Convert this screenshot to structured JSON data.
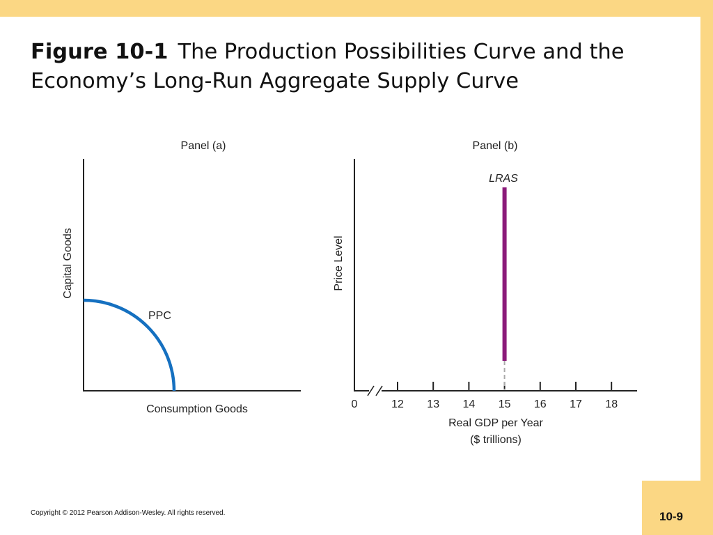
{
  "slide": {
    "figure_label": "Figure 10-1",
    "title": "The Production Possibilities Curve and the Economy’s Long-Run Aggregate Supply Curve",
    "number": "10-9",
    "copyright": "Copyright © 2012 Pearson Addison-Wesley. All rights reserved."
  },
  "colors": {
    "background_frame": "#fbd784",
    "ppc_curve": "#1570c0",
    "lras_line": "#8b1a7a",
    "dashed_line": "#aaaaaa"
  },
  "chart_data": [
    {
      "type": "line",
      "panel_label": "Panel (a)",
      "xlabel": "Consumption Goods",
      "ylabel": "Capital Goods",
      "series": [
        {
          "name": "PPC",
          "shape": "concave quarter arc from y-axis intercept to x-axis intercept"
        }
      ],
      "grid": false
    },
    {
      "type": "line",
      "panel_label": "Panel (b)",
      "xlabel": "Real GDP per Year",
      "xlabel_units": "($ trillions)",
      "ylabel": "Price Level",
      "x_ticks": [
        "0",
        "12",
        "13",
        "14",
        "15",
        "16",
        "17",
        "18"
      ],
      "x_axis_break": true,
      "xlim": [
        12,
        18
      ],
      "series": [
        {
          "name": "LRAS",
          "orientation": "vertical",
          "x": 15
        }
      ],
      "grid": false
    }
  ]
}
